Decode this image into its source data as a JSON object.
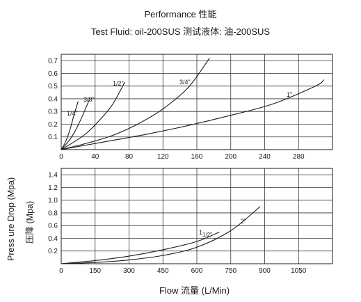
{
  "header": {
    "title": "Performance 性能",
    "subtitle": "Test Fluid: oil-200SUS 测试液体:  油-200SUS"
  },
  "axes": {
    "ylabel_en": "Press ure Drop (Mpa)",
    "ylabel_cn": "压降  (Mpa)",
    "xlabel": "Flow 流量 (L/Min)"
  },
  "chart_data": [
    {
      "type": "line",
      "title": "Performance 性能",
      "subtitle": "Test Fluid: oil-200SUS 测试液体:  油-200SUS",
      "xlabel": "Flow 流量 (L/Min)",
      "ylabel": "Press ure Drop (Mpa) 压降  (Mpa)",
      "xlim": [
        0,
        320
      ],
      "ylim": [
        0,
        0.75
      ],
      "x_ticks": [
        0,
        40,
        80,
        120,
        160,
        200,
        240,
        280
      ],
      "x_tick_labels": [
        "0",
        "40",
        "80",
        "120",
        "160",
        "200",
        "240",
        "280"
      ],
      "y_ticks": [
        0.1,
        0.2,
        0.3,
        0.4,
        0.5,
        0.6,
        0.7
      ],
      "y_tick_labels": [
        "0.1",
        "0.2",
        "0.3",
        "0.4",
        "0.5",
        "0.6",
        "0.7"
      ],
      "grid": true,
      "series": [
        {
          "name": "1/4\"",
          "label": "1/4\"",
          "color": "#1a1a1a",
          "x": [
            0,
            5,
            10,
            15,
            20
          ],
          "y": [
            0,
            0.06,
            0.15,
            0.27,
            0.38
          ]
        },
        {
          "name": "3/8\"",
          "label": "3/8\"",
          "color": "#1a1a1a",
          "x": [
            0,
            8,
            16,
            24,
            33
          ],
          "y": [
            0,
            0.06,
            0.14,
            0.25,
            0.39
          ]
        },
        {
          "name": "1/2\"",
          "label": "1/2\"",
          "color": "#1a1a1a",
          "x": [
            0,
            15,
            30,
            45,
            60,
            75
          ],
          "y": [
            0,
            0.06,
            0.13,
            0.23,
            0.35,
            0.53
          ]
        },
        {
          "name": "3/4\"",
          "label": "3/4\"",
          "color": "#1a1a1a",
          "x": [
            0,
            30,
            60,
            90,
            120,
            150,
            175
          ],
          "y": [
            0,
            0.05,
            0.11,
            0.2,
            0.32,
            0.49,
            0.72
          ]
        },
        {
          "name": "1\"",
          "label": "1\"",
          "color": "#1a1a1a",
          "x": [
            0,
            50,
            100,
            150,
            200,
            250,
            300,
            310
          ],
          "y": [
            0,
            0.06,
            0.12,
            0.19,
            0.27,
            0.36,
            0.5,
            0.55
          ]
        }
      ]
    },
    {
      "type": "line",
      "xlabel": "Flow 流量 (L/Min)",
      "xlim": [
        0,
        1200
      ],
      "ylim": [
        0,
        1.5
      ],
      "x_ticks": [
        0,
        150,
        300,
        450,
        600,
        750,
        900,
        1050
      ],
      "x_tick_labels": [
        "0",
        "150",
        "300",
        "450",
        "600",
        "750",
        "900",
        "1050"
      ],
      "y_ticks": [
        0.2,
        0.4,
        0.6,
        0.8,
        1.0,
        1.2,
        1.4
      ],
      "y_tick_labels": [
        "0.2",
        "0.4",
        "0.6",
        "0.8",
        "1.0",
        "1.2",
        "1.4"
      ],
      "grid": true,
      "series": [
        {
          "name": "1 1/2\"",
          "label": "1",
          "label_sub": "1/2\"",
          "color": "#1a1a1a",
          "x": [
            0,
            150,
            300,
            450,
            600,
            700
          ],
          "y": [
            0,
            0.05,
            0.12,
            0.22,
            0.35,
            0.5
          ]
        },
        {
          "name": "2\"",
          "label": "2\"",
          "color": "#1a1a1a",
          "x": [
            0,
            150,
            300,
            450,
            600,
            750,
            880
          ],
          "y": [
            0,
            0.02,
            0.06,
            0.13,
            0.26,
            0.52,
            0.9
          ]
        }
      ]
    }
  ]
}
